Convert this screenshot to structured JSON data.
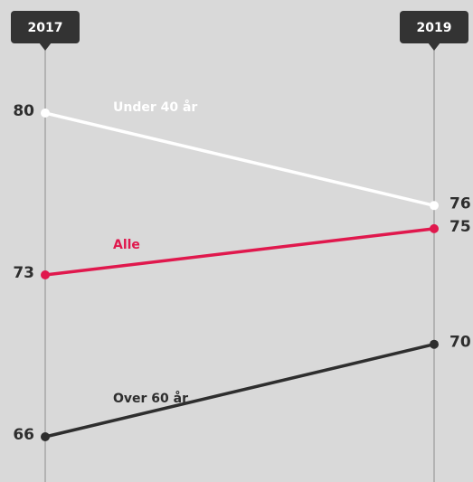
{
  "chart_data": {
    "type": "slope",
    "categories": [
      "2017",
      "2019"
    ],
    "series": [
      {
        "name": "Under 40 år",
        "color": "#ffffff",
        "values": [
          80,
          76
        ]
      },
      {
        "name": "Alle",
        "color": "#e0184d",
        "values": [
          73,
          75
        ]
      },
      {
        "name": "Over 60 år",
        "color": "#2e2e2e",
        "values": [
          66,
          70
        ]
      }
    ]
  }
}
